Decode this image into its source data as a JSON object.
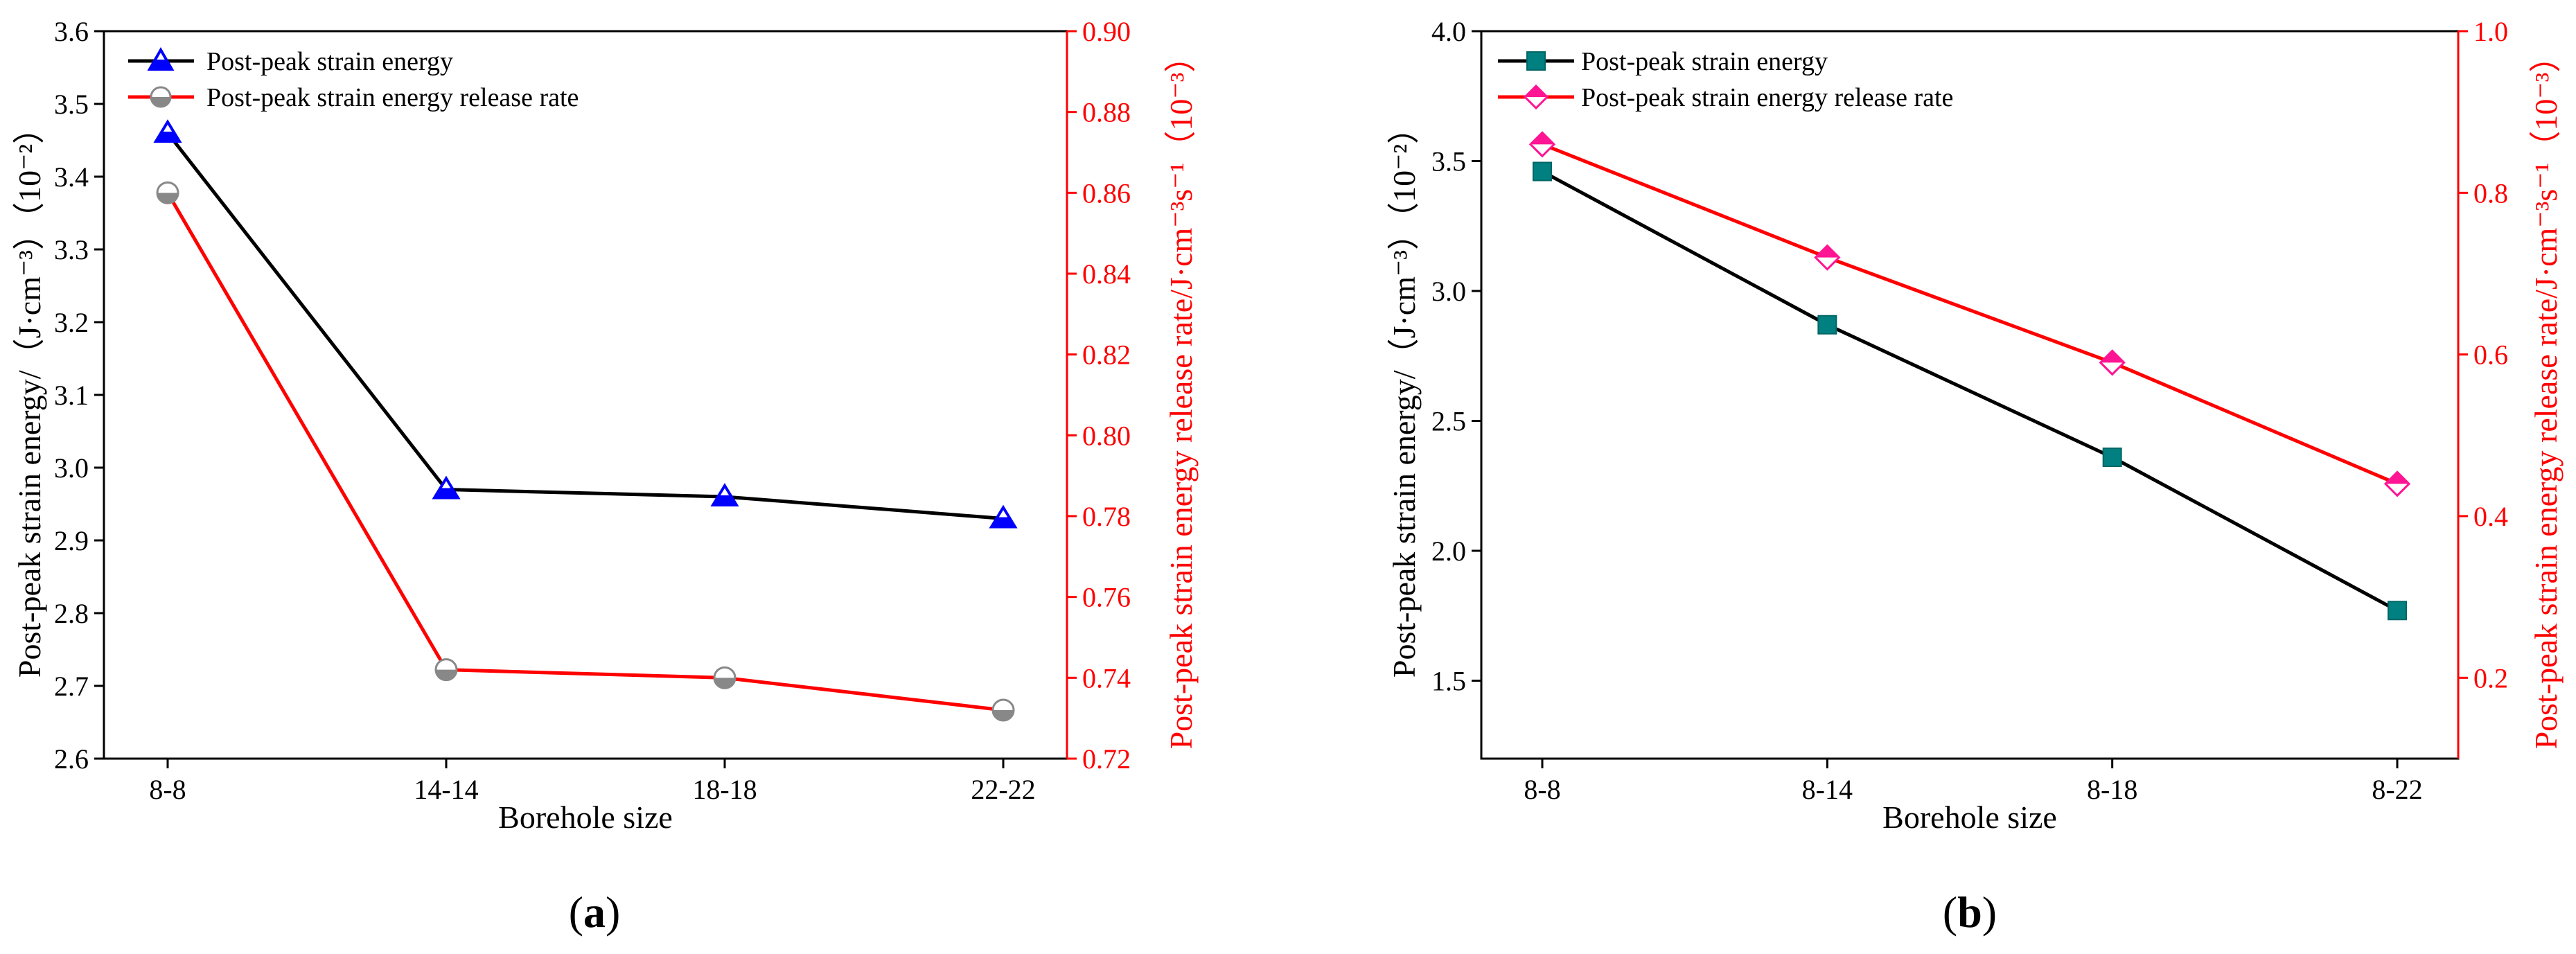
{
  "chart_data": [
    {
      "type": "line",
      "panel": "(a)",
      "panel_letter": "a",
      "categories": [
        "8-8",
        "14-14",
        "18-18",
        "22-22"
      ],
      "xlabel": "Borehole size",
      "ylabel_left": "Post-peak strain energy/（J·cm⁻³）（10⁻²）",
      "ylabel_right": "Post-peak strain energy release rate/J·cm⁻³s⁻¹（10⁻³）",
      "ylim_left": [
        2.6,
        3.6
      ],
      "yticks_left": [
        2.6,
        2.7,
        2.8,
        2.9,
        3.0,
        3.1,
        3.2,
        3.3,
        3.4,
        3.5,
        3.6
      ],
      "ylim_right": [
        0.72,
        0.9
      ],
      "yticks_right": [
        0.72,
        0.74,
        0.76,
        0.78,
        0.8,
        0.82,
        0.84,
        0.86,
        0.88,
        0.9
      ],
      "series": [
        {
          "name": "Post-peak strain energy",
          "axis": "left",
          "color": "#000000",
          "marker": "triangle",
          "marker_color": "#0000ff",
          "values": [
            3.46,
            2.97,
            2.96,
            2.93
          ]
        },
        {
          "name": "Post-peak strain energy release rate",
          "axis": "right",
          "color": "#ff0000",
          "marker": "half-circle",
          "marker_color": "#888888",
          "values": [
            0.86,
            0.742,
            0.74,
            0.732
          ]
        }
      ]
    },
    {
      "type": "line",
      "panel": "(b)",
      "panel_letter": "b",
      "categories": [
        "8-8",
        "8-14",
        "8-18",
        "8-22"
      ],
      "xlabel": "Borehole size",
      "ylabel_left": "Post-peak strain energy/（J·cm⁻³）（10⁻²）",
      "ylabel_right": "Post-peak strain energy release rate/J·cm⁻³s⁻¹（10⁻³）",
      "ylim_left": [
        1.2,
        4.0
      ],
      "yticks_left": [
        1.5,
        2.0,
        2.5,
        3.0,
        3.5,
        4.0
      ],
      "ylim_right": [
        0.1,
        1.0
      ],
      "yticks_right": [
        0.2,
        0.4,
        0.6,
        0.8,
        1.0
      ],
      "series": [
        {
          "name": "Post-peak strain energy",
          "axis": "left",
          "color": "#000000",
          "marker": "square",
          "marker_color": "#008080",
          "values": [
            3.46,
            2.87,
            2.36,
            1.77
          ]
        },
        {
          "name": "Post-peak strain energy release rate",
          "axis": "right",
          "color": "#ff0000",
          "marker": "diamond",
          "marker_color": "#ff1493",
          "values": [
            0.86,
            0.72,
            0.59,
            0.44
          ]
        }
      ]
    }
  ]
}
